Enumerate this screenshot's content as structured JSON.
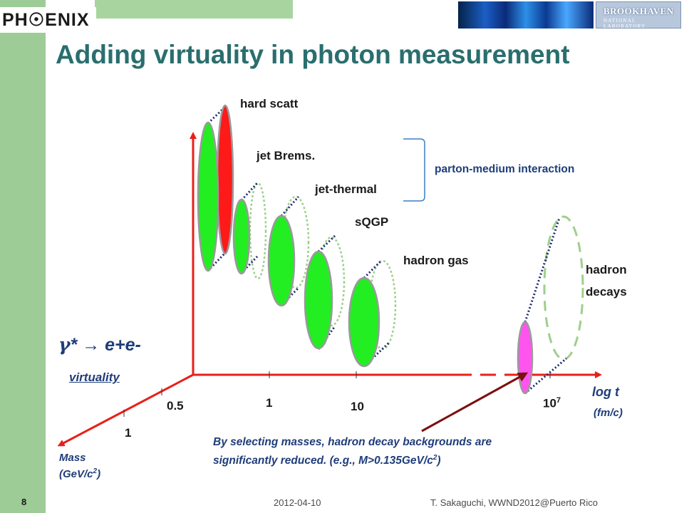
{
  "slide": {
    "title": "Adding virtuality in photon measurement",
    "page_number": "8",
    "footer_date": "2012-04-10",
    "footer_author": "T. Sakaguchi, WWND2012@Puerto Rico"
  },
  "header": {
    "logo_text": "PH☉ENIX",
    "lab_name": "BROOKHAVEN",
    "lab_sub": "NATIONAL LABORATORY"
  },
  "diagram": {
    "labels": {
      "hard_scatt": "hard scatt",
      "jet_brems": "jet Brems.",
      "jet_thermal": "jet-thermal",
      "sqgp": "sQGP",
      "hadron_gas": "hadron gas",
      "hadron_decays_1": "hadron",
      "hadron_decays_2": "decays",
      "parton_medium": "parton-medium interaction"
    },
    "axes": {
      "reaction_gamma": "γ",
      "reaction_rest": "* → e+e-",
      "virtuality": "virtuality",
      "mass_label": "Mass",
      "mass_unit": "(GeV/c",
      "mass_unit_sup": "2",
      "mass_unit_end": ")",
      "logt_label": "log t",
      "logt_unit": "(fm/c)",
      "tick_05": "0.5",
      "tick_1_mass": "1",
      "tick_1_time": "1",
      "tick_10": "10",
      "tick_1e7_base": "10",
      "tick_1e7_exp": "7"
    },
    "colors": {
      "axis_red": "#e8201a",
      "source_green": "#22ee22",
      "hard_red": "#ff1a1a",
      "decay_magenta": "#ff55ee",
      "outline_green": "#9ecf8c",
      "dotted_navy": "#1f2a6e",
      "arrow_darkred": "#7a1010",
      "title_teal": "#2a6e6e"
    }
  },
  "note": {
    "line1": "By selecting masses, hadron decay backgrounds are",
    "line2_a": "significantly reduced. (e.g., M>0.135GeV/c",
    "line2_sup": "2",
    "line2_b": ")"
  }
}
